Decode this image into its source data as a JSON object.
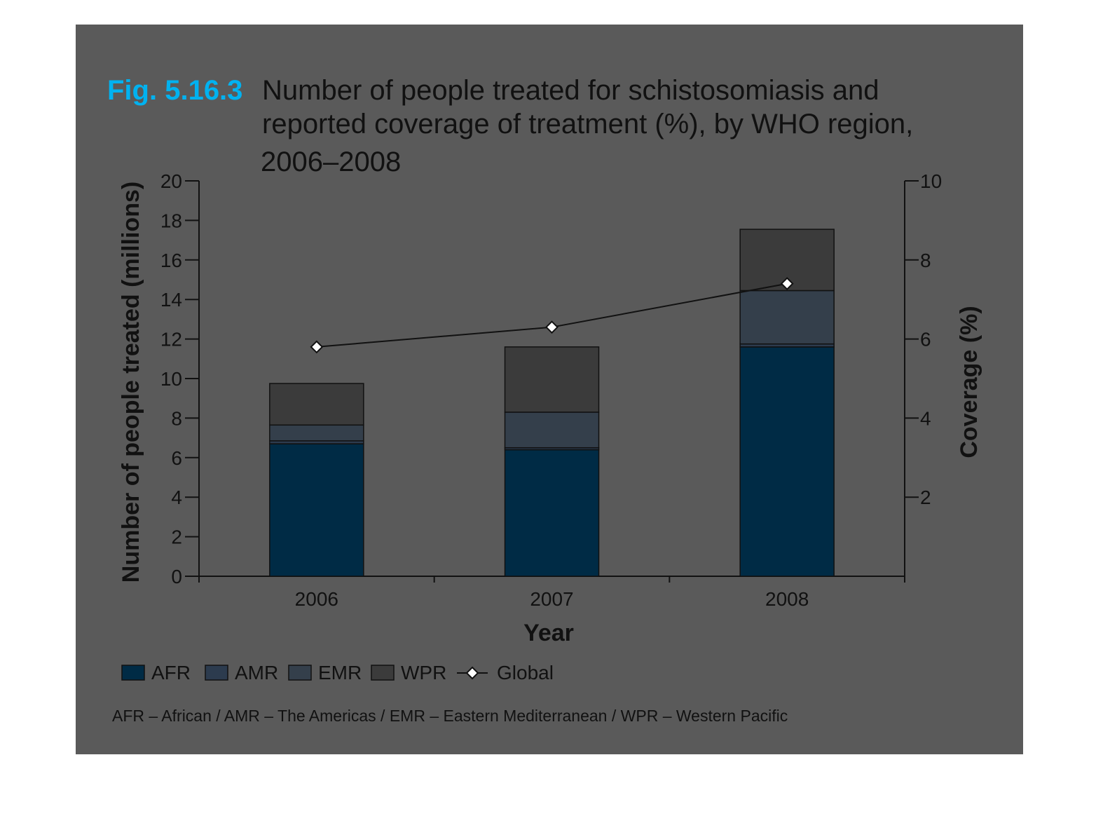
{
  "figure": {
    "label": "Fig. 5.16.3",
    "title_lines": [
      "Number of people treated for schistosomiasis and",
      "reported coverage of treatment (%), by WHO region,",
      "2006–2008"
    ],
    "footnote": "AFR – African / AMR – The Americas / EMR – Eastern Mediterranean / WPR – Western Pacific"
  },
  "colors": {
    "background_panel": "#5a5a5a",
    "AFR": "#002b45",
    "AMR": "#2c3b4e",
    "EMR": "#343f4b",
    "WPR": "#3b3b3b",
    "figure_label": "#00b2f0",
    "line": "#111111"
  },
  "chart_data": {
    "type": "bar",
    "stacked": true,
    "categories": [
      "2006",
      "2007",
      "2008"
    ],
    "xlabel": "Year",
    "ylabel": "Number of people treated (millions)",
    "y2label": "Coverage (%)",
    "ylim": [
      0,
      20
    ],
    "y2lim": [
      0,
      10
    ],
    "yticks": [
      0,
      2,
      4,
      6,
      8,
      10,
      12,
      14,
      16,
      18,
      20
    ],
    "y2ticks": [
      2,
      4,
      6,
      8,
      10
    ],
    "grid": false,
    "legend_position": "bottom-left",
    "series": [
      {
        "name": "AFR",
        "values": [
          6.7,
          6.4,
          11.6
        ]
      },
      {
        "name": "AMR",
        "values": [
          0.15,
          0.1,
          0.15
        ]
      },
      {
        "name": "EMR",
        "values": [
          0.8,
          1.8,
          2.7
        ]
      },
      {
        "name": "WPR",
        "values": [
          2.1,
          3.3,
          3.1
        ]
      }
    ],
    "line_series": {
      "name": "Global",
      "axis": "y2",
      "values": [
        5.8,
        6.3,
        7.4
      ]
    },
    "legend": [
      "AFR",
      "AMR",
      "EMR",
      "WPR",
      "Global"
    ]
  }
}
